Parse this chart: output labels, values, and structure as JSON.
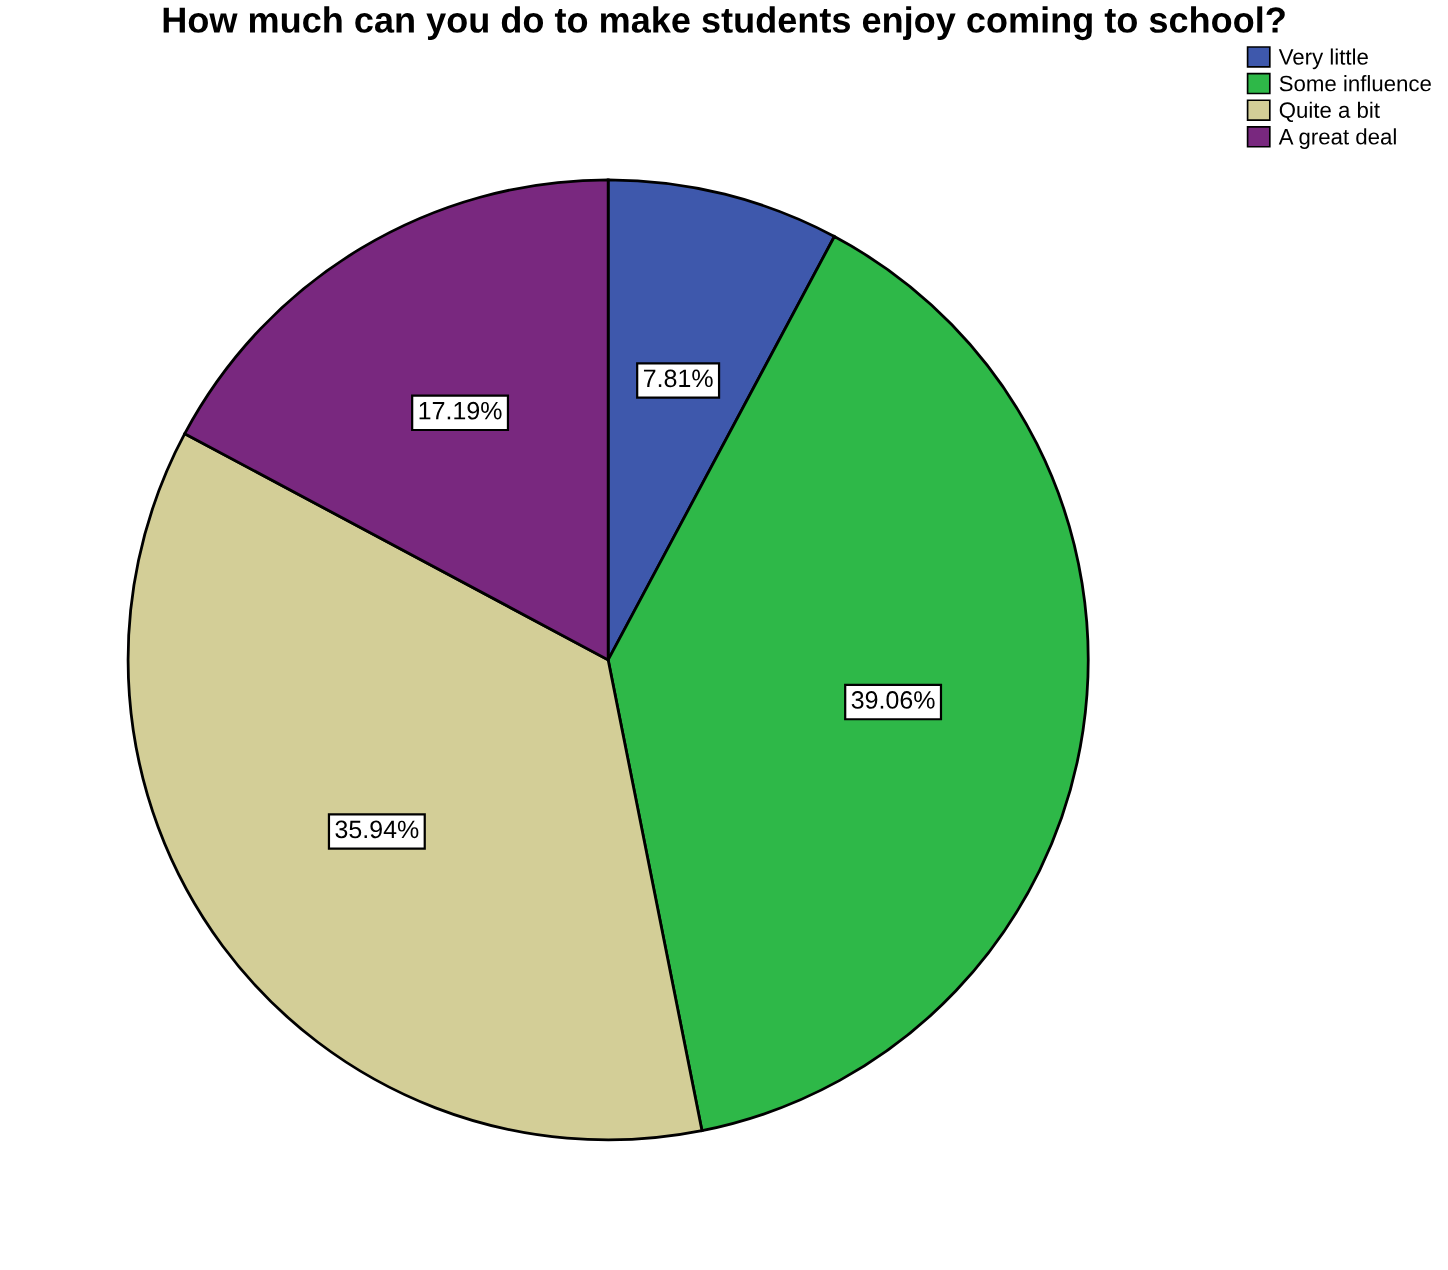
{
  "chart_data": {
    "type": "pie",
    "title": "How much can you do to make students enjoy coming to school?",
    "categories": [
      "Very little",
      "Some influence",
      "Quite a bit",
      "A great deal"
    ],
    "values": [
      7.81,
      39.06,
      35.94,
      17.19
    ],
    "colors": [
      "#3e58ac",
      "#2eb848",
      "#d3ce97",
      "#79287f"
    ],
    "value_labels": [
      "7.81%",
      "39.06%",
      "35.94%",
      "17.19%"
    ],
    "legend": "top right"
  }
}
